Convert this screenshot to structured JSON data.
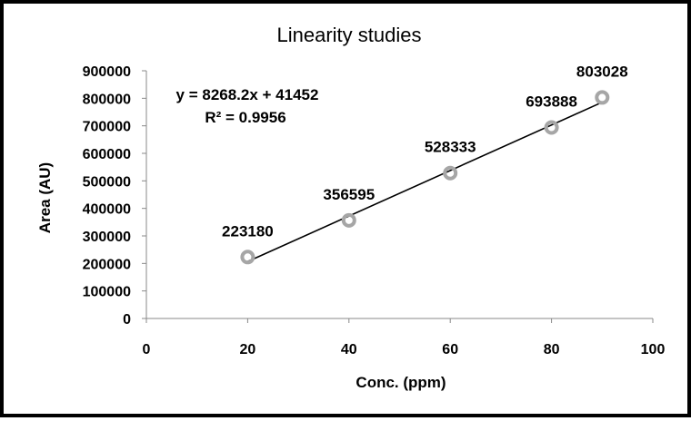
{
  "chart_data": {
    "type": "scatter",
    "title": "Linearity studies",
    "xlabel": "Conc. (ppm)",
    "ylabel": "Area (AU)",
    "xlim": [
      0,
      100
    ],
    "ylim": [
      0,
      900000
    ],
    "xticks": [
      "0",
      "20",
      "40",
      "60",
      "80",
      "100"
    ],
    "yticks": [
      "0",
      "100000",
      "200000",
      "300000",
      "400000",
      "500000",
      "600000",
      "700000",
      "800000",
      "900000"
    ],
    "grid": false,
    "legend": "none",
    "series": [
      {
        "x": [
          20,
          40,
          60,
          80,
          90
        ],
        "y": [
          223180,
          356595,
          528333,
          693888,
          803028
        ],
        "data_labels": [
          "223180",
          "356595",
          "528333",
          "693888",
          "803028"
        ],
        "marker_color": "#a6a6a6"
      }
    ],
    "trendline": {
      "type": "linear",
      "slope": 8268.2,
      "intercept": 41452,
      "x_range": [
        20,
        90
      ],
      "color": "#000000",
      "equation": "y = 8268.2x + 41452",
      "r_squared": "R² = 0.9956"
    }
  }
}
